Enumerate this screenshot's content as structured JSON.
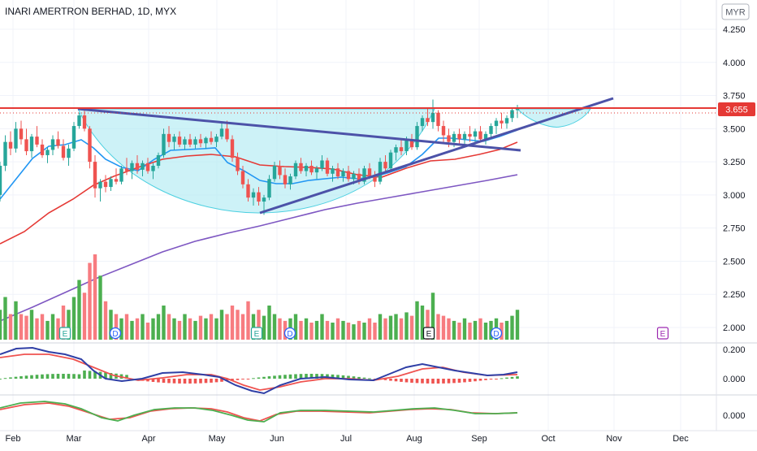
{
  "header": {
    "title": "INARI AMERTRON BERHAD, 1D, MYX",
    "currency_button": "MYR"
  },
  "chart_data": {
    "type": "candlestick",
    "x_tick_labels": [
      "Feb",
      "Mar",
      "Apr",
      "May",
      "Jun",
      "Jul",
      "Aug",
      "Sep",
      "Oct",
      "Nov",
      "Dec"
    ],
    "price_axis": {
      "ticks": [
        "4.250",
        "4.000",
        "3.750",
        "3.500",
        "3.250",
        "3.000",
        "2.750",
        "2.500",
        "2.250",
        "2.000"
      ],
      "ylim": [
        1.95,
        4.35
      ],
      "last_price_label": "3.655",
      "last_price": 3.655,
      "resistance_level": 3.655
    },
    "macd_axis": {
      "ticks": [
        "0.200",
        "0.000"
      ],
      "ylim": [
        -0.16,
        0.24
      ]
    },
    "osc_axis": {
      "ticks": [
        "0.000"
      ],
      "ylim": [
        -0.07,
        0.09
      ]
    },
    "candles": [
      [
        3.0,
        3.25,
        2.95,
        3.22
      ],
      [
        3.22,
        3.45,
        3.18,
        3.4
      ],
      [
        3.4,
        3.48,
        3.3,
        3.35
      ],
      [
        3.35,
        3.55,
        3.32,
        3.5
      ],
      [
        3.5,
        3.56,
        3.38,
        3.42
      ],
      [
        3.42,
        3.5,
        3.3,
        3.33
      ],
      [
        3.33,
        3.46,
        3.28,
        3.44
      ],
      [
        3.44,
        3.52,
        3.36,
        3.38
      ],
      [
        3.38,
        3.42,
        3.28,
        3.3
      ],
      [
        3.3,
        3.36,
        3.24,
        3.34
      ],
      [
        3.34,
        3.45,
        3.3,
        3.42
      ],
      [
        3.42,
        3.48,
        3.35,
        3.37
      ],
      [
        3.37,
        3.42,
        3.26,
        3.28
      ],
      [
        3.28,
        3.38,
        3.22,
        3.35
      ],
      [
        3.35,
        3.55,
        3.33,
        3.52
      ],
      [
        3.52,
        3.62,
        3.5,
        3.6
      ],
      [
        3.6,
        3.66,
        3.48,
        3.5
      ],
      [
        3.5,
        3.52,
        3.2,
        3.25
      ],
      [
        3.25,
        3.3,
        2.98,
        3.05
      ],
      [
        3.05,
        3.12,
        2.95,
        3.1
      ],
      [
        3.1,
        3.15,
        3.02,
        3.06
      ],
      [
        3.06,
        3.14,
        3.03,
        3.12
      ],
      [
        3.12,
        3.2,
        3.08,
        3.1
      ],
      [
        3.1,
        3.22,
        3.08,
        3.2
      ],
      [
        3.2,
        3.28,
        3.15,
        3.18
      ],
      [
        3.18,
        3.26,
        3.12,
        3.24
      ],
      [
        3.24,
        3.3,
        3.16,
        3.19
      ],
      [
        3.19,
        3.26,
        3.14,
        3.24
      ],
      [
        3.24,
        3.28,
        3.16,
        3.18
      ],
      [
        3.18,
        3.24,
        3.12,
        3.22
      ],
      [
        3.22,
        3.32,
        3.2,
        3.3
      ],
      [
        3.3,
        3.5,
        3.28,
        3.46
      ],
      [
        3.46,
        3.52,
        3.36,
        3.4
      ],
      [
        3.4,
        3.46,
        3.34,
        3.44
      ],
      [
        3.44,
        3.48,
        3.36,
        3.38
      ],
      [
        3.38,
        3.44,
        3.34,
        3.42
      ],
      [
        3.42,
        3.46,
        3.36,
        3.38
      ],
      [
        3.38,
        3.44,
        3.35,
        3.42
      ],
      [
        3.42,
        3.46,
        3.36,
        3.39
      ],
      [
        3.39,
        3.44,
        3.35,
        3.43
      ],
      [
        3.43,
        3.48,
        3.38,
        3.4
      ],
      [
        3.4,
        3.46,
        3.36,
        3.44
      ],
      [
        3.44,
        3.55,
        3.42,
        3.5
      ],
      [
        3.5,
        3.56,
        3.4,
        3.42
      ],
      [
        3.42,
        3.45,
        3.25,
        3.28
      ],
      [
        3.28,
        3.32,
        3.15,
        3.18
      ],
      [
        3.18,
        3.22,
        3.05,
        3.08
      ],
      [
        3.08,
        3.12,
        2.95,
        2.98
      ],
      [
        2.98,
        3.05,
        2.92,
        3.02
      ],
      [
        3.02,
        3.06,
        2.92,
        2.95
      ],
      [
        2.95,
        3.0,
        2.85,
        2.98
      ],
      [
        2.98,
        3.15,
        2.96,
        3.12
      ],
      [
        3.12,
        3.25,
        3.1,
        3.22
      ],
      [
        3.22,
        3.26,
        3.12,
        3.15
      ],
      [
        3.15,
        3.2,
        3.05,
        3.08
      ],
      [
        3.08,
        3.16,
        3.04,
        3.14
      ],
      [
        3.14,
        3.26,
        3.12,
        3.24
      ],
      [
        3.24,
        3.28,
        3.16,
        3.18
      ],
      [
        3.18,
        3.24,
        3.14,
        3.22
      ],
      [
        3.22,
        3.26,
        3.15,
        3.17
      ],
      [
        3.17,
        3.22,
        3.12,
        3.2
      ],
      [
        3.2,
        3.3,
        3.18,
        3.26
      ],
      [
        3.26,
        3.28,
        3.14,
        3.16
      ],
      [
        3.16,
        3.22,
        3.1,
        3.2
      ],
      [
        3.2,
        3.24,
        3.12,
        3.14
      ],
      [
        3.14,
        3.2,
        3.1,
        3.18
      ],
      [
        3.18,
        3.22,
        3.1,
        3.12
      ],
      [
        3.12,
        3.18,
        3.08,
        3.16
      ],
      [
        3.16,
        3.2,
        3.08,
        3.1
      ],
      [
        3.1,
        3.22,
        3.08,
        3.2
      ],
      [
        3.2,
        3.24,
        3.12,
        3.14
      ],
      [
        3.14,
        3.18,
        3.06,
        3.1
      ],
      [
        3.1,
        3.28,
        3.08,
        3.25
      ],
      [
        3.25,
        3.3,
        3.18,
        3.2
      ],
      [
        3.2,
        3.34,
        3.18,
        3.32
      ],
      [
        3.32,
        3.38,
        3.26,
        3.36
      ],
      [
        3.36,
        3.42,
        3.3,
        3.33
      ],
      [
        3.33,
        3.44,
        3.3,
        3.42
      ],
      [
        3.42,
        3.46,
        3.34,
        3.36
      ],
      [
        3.36,
        3.55,
        3.34,
        3.52
      ],
      [
        3.52,
        3.6,
        3.48,
        3.58
      ],
      [
        3.58,
        3.66,
        3.52,
        3.55
      ],
      [
        3.55,
        3.72,
        3.5,
        3.62
      ],
      [
        3.62,
        3.64,
        3.48,
        3.52
      ],
      [
        3.52,
        3.56,
        3.4,
        3.45
      ],
      [
        3.45,
        3.5,
        3.36,
        3.4
      ],
      [
        3.4,
        3.48,
        3.36,
        3.46
      ],
      [
        3.46,
        3.5,
        3.38,
        3.42
      ],
      [
        3.42,
        3.48,
        3.36,
        3.46
      ],
      [
        3.46,
        3.52,
        3.4,
        3.44
      ],
      [
        3.44,
        3.5,
        3.38,
        3.48
      ],
      [
        3.48,
        3.52,
        3.4,
        3.42
      ],
      [
        3.42,
        3.48,
        3.38,
        3.46
      ],
      [
        3.46,
        3.54,
        3.42,
        3.52
      ],
      [
        3.52,
        3.58,
        3.46,
        3.56
      ],
      [
        3.56,
        3.62,
        3.5,
        3.54
      ],
      [
        3.54,
        3.6,
        3.5,
        3.58
      ],
      [
        3.58,
        3.66,
        3.55,
        3.64
      ],
      [
        3.64,
        3.68,
        3.58,
        3.655
      ]
    ],
    "volume": [
      0.35,
      0.5,
      0.3,
      0.45,
      0.3,
      0.28,
      0.35,
      0.25,
      0.3,
      0.22,
      0.3,
      0.25,
      0.4,
      0.35,
      0.5,
      0.7,
      0.55,
      0.9,
      1.0,
      0.75,
      0.45,
      0.35,
      0.3,
      0.25,
      0.3,
      0.22,
      0.25,
      0.3,
      0.2,
      0.25,
      0.3,
      0.4,
      0.3,
      0.25,
      0.22,
      0.3,
      0.25,
      0.22,
      0.28,
      0.25,
      0.3,
      0.25,
      0.35,
      0.3,
      0.4,
      0.35,
      0.3,
      0.45,
      0.3,
      0.35,
      0.28,
      0.4,
      0.3,
      0.25,
      0.22,
      0.25,
      0.3,
      0.22,
      0.25,
      0.2,
      0.22,
      0.3,
      0.22,
      0.2,
      0.25,
      0.22,
      0.2,
      0.18,
      0.22,
      0.2,
      0.25,
      0.2,
      0.3,
      0.25,
      0.28,
      0.3,
      0.25,
      0.32,
      0.28,
      0.45,
      0.4,
      0.35,
      0.55,
      0.3,
      0.28,
      0.25,
      0.22,
      0.2,
      0.25,
      0.2,
      0.22,
      0.25,
      0.2,
      0.22,
      0.25,
      0.2,
      0.22,
      0.28,
      0.35
    ],
    "events": [
      {
        "label": "E",
        "bar": 14,
        "style": "earnings"
      },
      {
        "label": "D",
        "bar": 26,
        "style": "dividend"
      },
      {
        "label": "E",
        "bar": 59,
        "style": "earnings"
      },
      {
        "label": "D",
        "bar": 66,
        "style": "dividend"
      },
      {
        "label": "E",
        "bar": 98,
        "style": "earnings-dark"
      },
      {
        "label": "D",
        "bar": 116,
        "style": "dividend"
      },
      {
        "label": "E",
        "bar": 150,
        "style": "earnings-future"
      }
    ],
    "colors": {
      "up": "#26a69a",
      "down": "#ef5350",
      "vol_up": "#4caf50",
      "vol_down": "#f77c80",
      "ma_fast": "#2196f3",
      "ma_mid": "#e53935",
      "ma_slow": "#7e57c2",
      "trendline": "#4c52a8",
      "resistance": "#e53935",
      "cup_fill": "#b2ebf2",
      "cup_stroke": "#4dd0e1",
      "macd_line": "#2f3fa6",
      "signal_line": "#ef5350",
      "osc_up": "#4caf50",
      "osc_down": "#ef5350"
    }
  }
}
